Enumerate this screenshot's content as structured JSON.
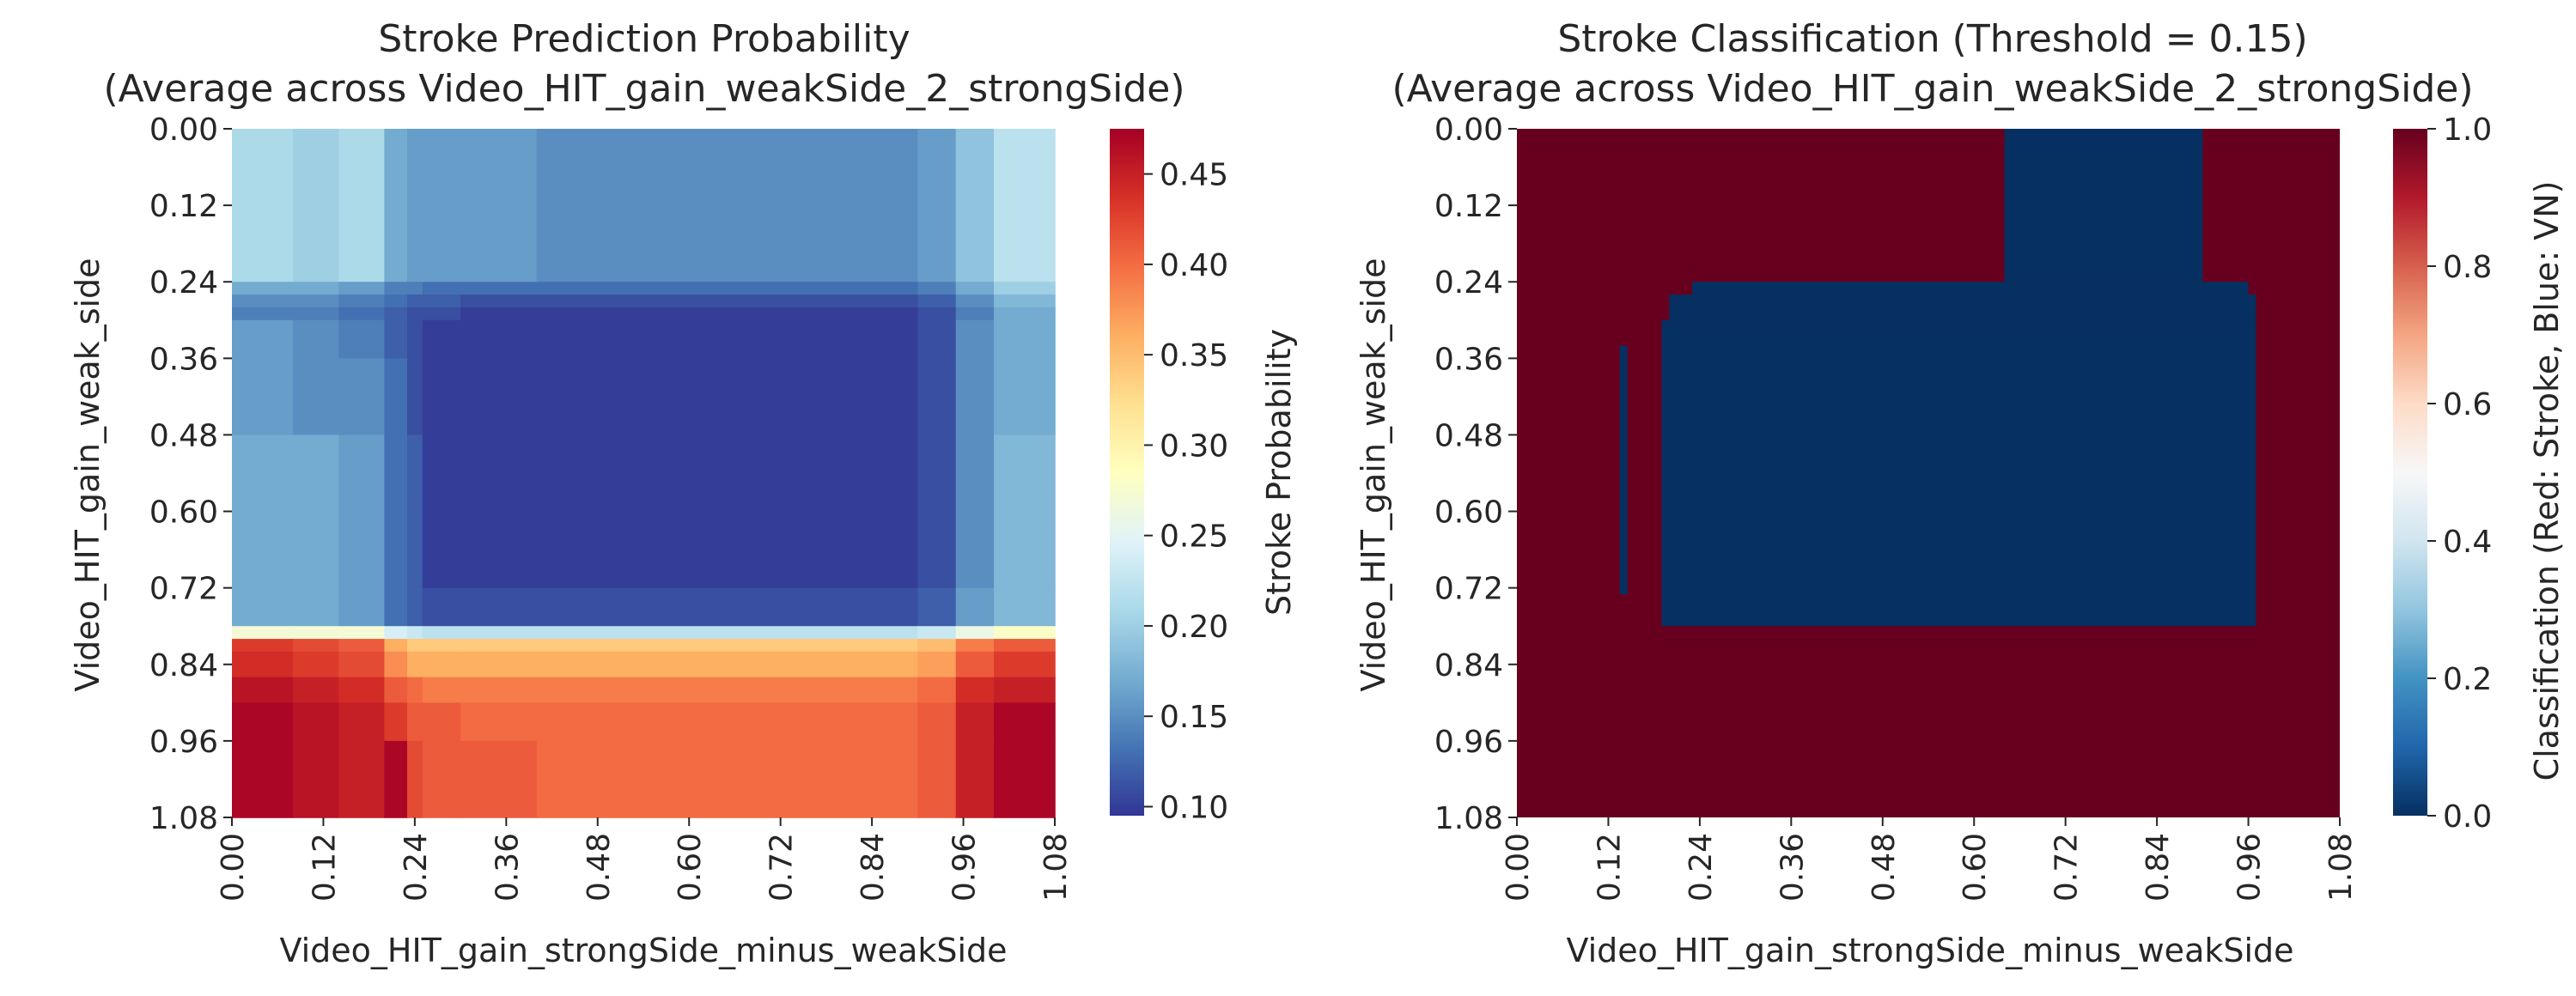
{
  "chart_data": [
    {
      "type": "heatmap",
      "title": "Stroke Prediction Probability\n(Average across Video_HIT_gain_weakSide_2_strongSide)",
      "xlabel": "Video_HIT_gain_strongSide_minus_weakSide",
      "ylabel": "Video_HIT_gain_weak_side",
      "x_ticks": [
        "0.00",
        "0.12",
        "0.24",
        "0.36",
        "0.48",
        "0.60",
        "0.72",
        "0.84",
        "0.96",
        "1.08"
      ],
      "y_ticks": [
        "0.00",
        "0.12",
        "0.24",
        "0.36",
        "0.48",
        "0.60",
        "0.72",
        "0.84",
        "0.96",
        "1.08"
      ],
      "x_range": [
        0.0,
        1.08
      ],
      "y_range": [
        0.0,
        1.08
      ],
      "colormap": "RdYlBu_r",
      "colorbar": {
        "label": "Stroke Probability",
        "range": [
          0.095,
          0.475
        ],
        "ticks": [
          "0.10",
          "0.15",
          "0.20",
          "0.25",
          "0.30",
          "0.35",
          "0.40",
          "0.45"
        ]
      },
      "x_bins": [
        0.0,
        0.08,
        0.14,
        0.2,
        0.23,
        0.25,
        0.3,
        0.4,
        0.58,
        0.9,
        0.95,
        1.0,
        1.08
      ],
      "y_bins": [
        0.0,
        0.24,
        0.26,
        0.28,
        0.3,
        0.36,
        0.48,
        0.6,
        0.72,
        0.78,
        0.8,
        0.82,
        0.86,
        0.9,
        0.96,
        1.08
      ],
      "values": [
        [
          0.21,
          0.2,
          0.21,
          0.17,
          0.16,
          0.16,
          0.16,
          0.15,
          0.15,
          0.16,
          0.19,
          0.22
        ],
        [
          0.17,
          0.17,
          0.16,
          0.14,
          0.14,
          0.13,
          0.13,
          0.13,
          0.13,
          0.14,
          0.17,
          0.2
        ],
        [
          0.15,
          0.15,
          0.14,
          0.13,
          0.12,
          0.12,
          0.11,
          0.11,
          0.11,
          0.12,
          0.15,
          0.18
        ],
        [
          0.14,
          0.14,
          0.13,
          0.12,
          0.11,
          0.11,
          0.1,
          0.1,
          0.1,
          0.11,
          0.14,
          0.17
        ],
        [
          0.16,
          0.15,
          0.14,
          0.12,
          0.11,
          0.1,
          0.1,
          0.1,
          0.1,
          0.11,
          0.15,
          0.17
        ],
        [
          0.16,
          0.15,
          0.15,
          0.13,
          0.11,
          0.1,
          0.1,
          0.1,
          0.1,
          0.11,
          0.15,
          0.17
        ],
        [
          0.17,
          0.17,
          0.16,
          0.13,
          0.12,
          0.1,
          0.1,
          0.1,
          0.1,
          0.11,
          0.15,
          0.18
        ],
        [
          0.17,
          0.17,
          0.16,
          0.13,
          0.12,
          0.1,
          0.1,
          0.1,
          0.1,
          0.11,
          0.15,
          0.18
        ],
        [
          0.17,
          0.17,
          0.16,
          0.13,
          0.12,
          0.11,
          0.11,
          0.11,
          0.11,
          0.12,
          0.16,
          0.18
        ],
        [
          0.27,
          0.27,
          0.27,
          0.24,
          0.23,
          0.22,
          0.22,
          0.22,
          0.22,
          0.23,
          0.26,
          0.28
        ],
        [
          0.43,
          0.42,
          0.41,
          0.36,
          0.34,
          0.34,
          0.34,
          0.34,
          0.34,
          0.35,
          0.39,
          0.41
        ],
        [
          0.44,
          0.43,
          0.42,
          0.38,
          0.36,
          0.36,
          0.36,
          0.36,
          0.36,
          0.37,
          0.41,
          0.43
        ],
        [
          0.46,
          0.45,
          0.44,
          0.41,
          0.4,
          0.39,
          0.39,
          0.39,
          0.39,
          0.4,
          0.44,
          0.45
        ],
        [
          0.47,
          0.46,
          0.45,
          0.43,
          0.41,
          0.41,
          0.4,
          0.4,
          0.4,
          0.41,
          0.45,
          0.47
        ],
        [
          0.47,
          0.46,
          0.45,
          0.47,
          0.42,
          0.41,
          0.41,
          0.4,
          0.4,
          0.41,
          0.45,
          0.47
        ]
      ]
    },
    {
      "type": "heatmap",
      "title": "Stroke Classification (Threshold = 0.15)\n(Average across Video_HIT_gain_weakSide_2_strongSide)",
      "xlabel": "Video_HIT_gain_strongSide_minus_weakSide",
      "ylabel": "Video_HIT_gain_weak_side",
      "x_ticks": [
        "0.00",
        "0.12",
        "0.24",
        "0.36",
        "0.48",
        "0.60",
        "0.72",
        "0.84",
        "0.96",
        "1.08"
      ],
      "y_ticks": [
        "0.00",
        "0.12",
        "0.24",
        "0.36",
        "0.48",
        "0.60",
        "0.72",
        "0.84",
        "0.96",
        "1.08"
      ],
      "x_range": [
        0.0,
        1.08
      ],
      "y_range": [
        0.0,
        1.08
      ],
      "colormap": "RdBu_r",
      "colorbar": {
        "label": "Classification (Red: Stroke, Blue: VN)",
        "range": [
          0.0,
          1.0
        ],
        "ticks": [
          "0.0",
          "0.2",
          "0.4",
          "0.6",
          "0.8",
          "1.0"
        ]
      },
      "background_value": 1,
      "regions": [
        {
          "value": 0,
          "x": [
            0.64,
            0.9
          ],
          "y": [
            0.0,
            0.24
          ]
        },
        {
          "value": 0,
          "x": [
            0.23,
            0.96
          ],
          "y": [
            0.24,
            0.26
          ]
        },
        {
          "value": 0,
          "x": [
            0.2,
            0.97
          ],
          "y": [
            0.26,
            0.3
          ]
        },
        {
          "value": 0,
          "x": [
            0.19,
            0.97
          ],
          "y": [
            0.3,
            0.78
          ]
        },
        {
          "value": 0,
          "x": [
            0.135,
            0.145
          ],
          "y": [
            0.34,
            0.73
          ]
        }
      ]
    }
  ]
}
